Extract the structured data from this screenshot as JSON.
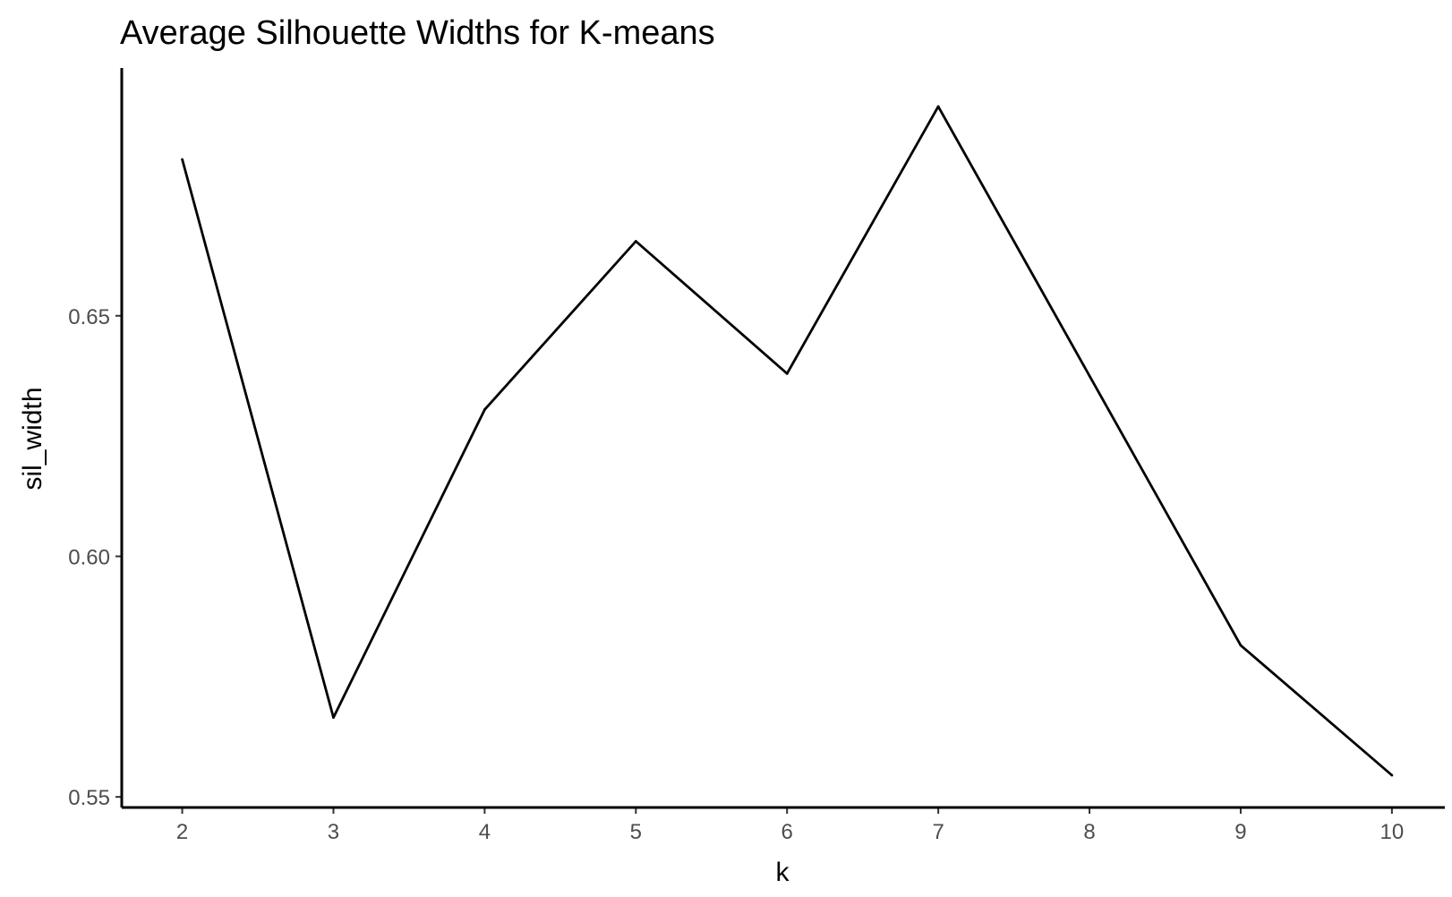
{
  "chart_data": {
    "type": "line",
    "title": "Average Silhouette Widths for K-means",
    "xlabel": "k",
    "ylabel": "sil_width",
    "x": [
      2,
      3,
      4,
      5,
      6,
      7,
      8,
      9,
      10
    ],
    "series": [
      {
        "values": [
          0.6825,
          0.5665,
          0.6305,
          0.6655,
          0.638,
          0.6935,
          0.6375,
          0.5815,
          0.5545
        ]
      }
    ],
    "x_ticks": [
      "2",
      "3",
      "4",
      "5",
      "6",
      "7",
      "8",
      "9",
      "10"
    ],
    "y_ticks": [
      "0.55",
      "0.60",
      "0.65"
    ],
    "y_tick_values": [
      0.55,
      0.6,
      0.65
    ],
    "xlim": [
      1.6,
      10.35
    ],
    "ylim": [
      0.5478,
      0.7015
    ],
    "grid": false,
    "line_color": "#000000"
  }
}
